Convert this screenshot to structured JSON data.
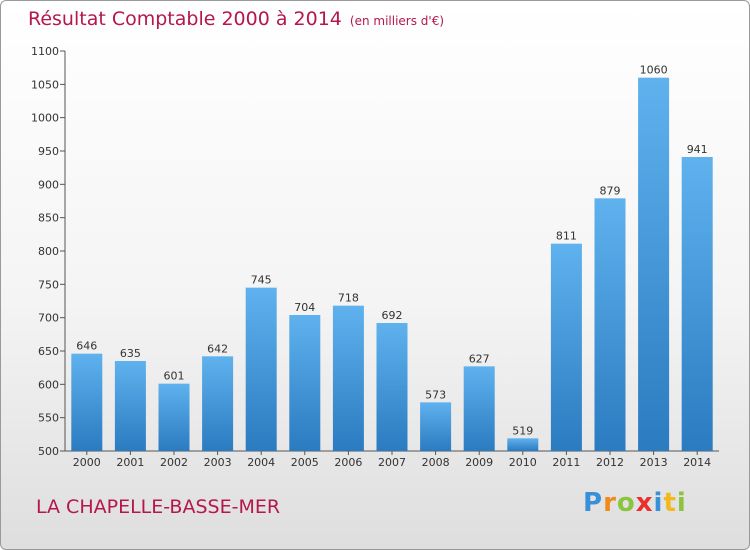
{
  "header": {
    "title": "Résultat Comptable 2000 à 2014",
    "unit": "(en milliers d'€)"
  },
  "footer": {
    "commune": "LA CHAPELLE-BASSE-MER",
    "logo_letters": [
      "P",
      "r",
      "o",
      "x",
      "i",
      "t",
      "i"
    ],
    "logo_colors": [
      "#3a8fd9",
      "#f08a1c",
      "#8bc43f",
      "#e8302c",
      "#3a8fd9",
      "#f2b81e",
      "#8bc43f"
    ]
  },
  "colors": {
    "title": "#b5174c",
    "bar_top": "#5fb2ee",
    "bar_bottom": "#2a7bc0"
  },
  "chart_data": {
    "type": "bar",
    "title": "Résultat Comptable 2000 à 2014",
    "subtitle": "(en milliers d'€)",
    "xlabel": "",
    "ylabel": "",
    "categories": [
      "2000",
      "2001",
      "2002",
      "2003",
      "2004",
      "2005",
      "2006",
      "2007",
      "2008",
      "2009",
      "2010",
      "2011",
      "2012",
      "2013",
      "2014"
    ],
    "values": [
      646,
      635,
      601,
      642,
      745,
      704,
      718,
      692,
      573,
      627,
      519,
      811,
      879,
      1060,
      941
    ],
    "ylim": [
      500,
      1100
    ],
    "yticks": [
      500,
      550,
      600,
      650,
      700,
      750,
      800,
      850,
      900,
      950,
      1000,
      1050,
      1100
    ],
    "grid": false,
    "data_labels": true
  }
}
